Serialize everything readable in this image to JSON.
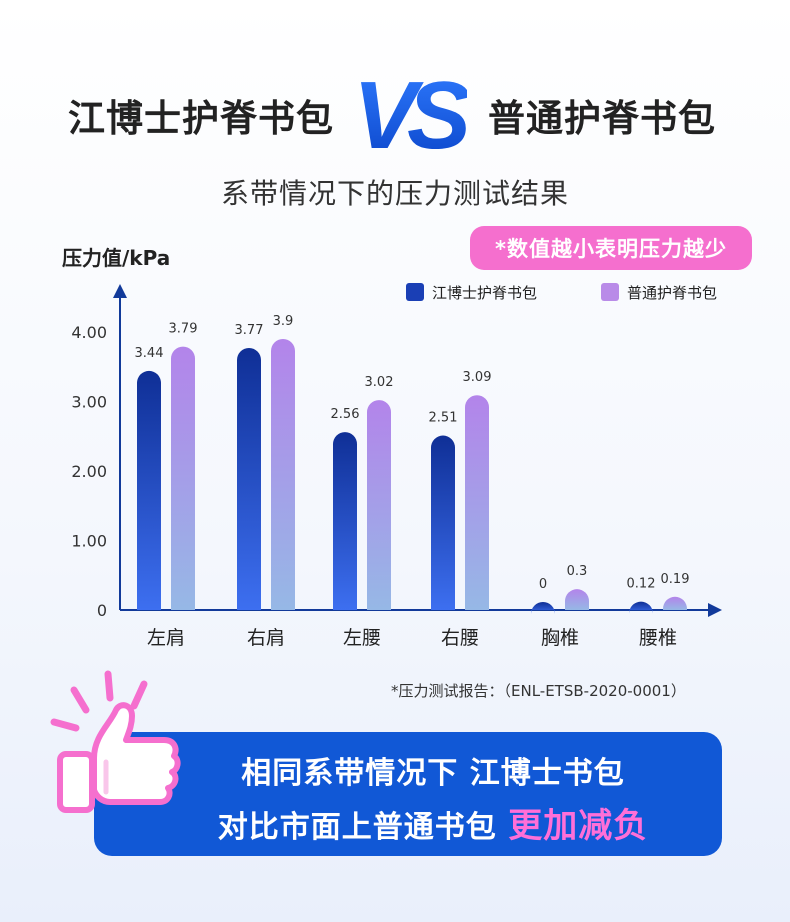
{
  "header": {
    "left_brand": "江博士护脊书包",
    "vs_text": "VS",
    "right_brand": "普通护脊书包"
  },
  "subtitle": "系带情况下的压力测试结果",
  "note": "*数值越小表明压力越少",
  "report": "*压力测试报告：（ENL-ETSB-2020-0001）",
  "banner": {
    "line1": "相同系带情况下 江博士书包",
    "line2_prefix": "对比市面上普通书包",
    "line2_highlight": "更加减负"
  },
  "colors": {
    "series1": "#1a3fb5",
    "series2": "#b98be8",
    "accent_pink": "#f56fce",
    "banner_blue": "#1158d6",
    "axis": "#123a9a"
  },
  "chart_data": {
    "type": "bar",
    "ylabel": "压力值/kPa",
    "ylim": [
      0,
      4.4
    ],
    "yticks": [
      "0",
      "1.00",
      "2.00",
      "3.00",
      "4.00"
    ],
    "categories": [
      "左肩",
      "右肩",
      "左腰",
      "右腰",
      "胸椎",
      "腰椎"
    ],
    "series": [
      {
        "name": "江博士护脊书包",
        "values": [
          3.44,
          3.77,
          2.56,
          2.51,
          0,
          0.12
        ],
        "labels": [
          "3.44",
          "3.77",
          "2.56",
          "2.51",
          "0",
          "0.12"
        ]
      },
      {
        "name": "普通护脊书包",
        "values": [
          3.79,
          3.9,
          3.02,
          3.09,
          0.3,
          0.19
        ],
        "labels": [
          "3.79",
          "3.9",
          "3.02",
          "3.09",
          "0.3",
          "0.19"
        ]
      }
    ],
    "grid": false,
    "legend": "top-right"
  }
}
